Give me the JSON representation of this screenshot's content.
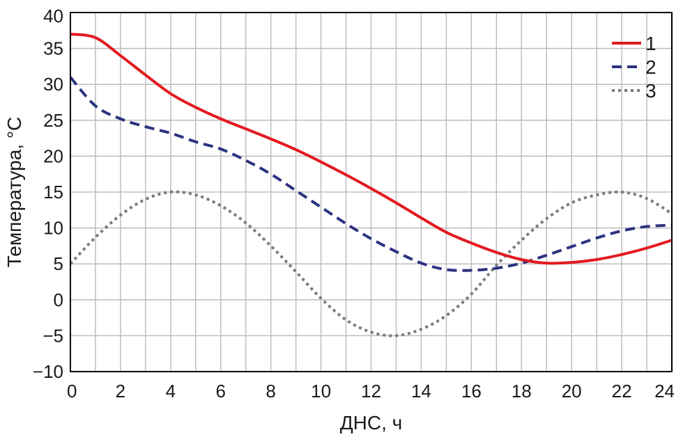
{
  "chart_data": {
    "type": "line",
    "xlabel": "ДНС, ч",
    "ylabel": "Температура, °C",
    "xlim": [
      0,
      24
    ],
    "ylim": [
      -10,
      40
    ],
    "x_ticks": [
      "0",
      "2",
      "4",
      "6",
      "8",
      "10",
      "12",
      "14",
      "16",
      "18",
      "20",
      "22",
      "24"
    ],
    "y_ticks": [
      "−10",
      "−5",
      "0",
      "5",
      "10",
      "15",
      "20",
      "25",
      "30",
      "35",
      "40"
    ],
    "grid": true,
    "legend_position": "top-right",
    "series": [
      {
        "name": "1",
        "color": "#e3191f",
        "dash": "solid",
        "x": [
          0,
          1,
          2,
          3,
          4,
          5,
          6,
          7,
          8,
          9,
          10,
          11,
          12,
          13,
          14,
          15,
          16,
          17,
          18,
          19,
          20,
          21,
          22,
          23,
          24
        ],
        "y": [
          37,
          36.5,
          34,
          31.3,
          28.7,
          26.8,
          25.2,
          23.8,
          22.4,
          20.9,
          19.2,
          17.4,
          15.5,
          13.5,
          11.4,
          9.4,
          7.9,
          6.6,
          5.6,
          5.1,
          5.2,
          5.6,
          6.3,
          7.2,
          8.3
        ]
      },
      {
        "name": "2",
        "color": "#2b3380",
        "dash": "dashed",
        "x": [
          0,
          1,
          2,
          3,
          4,
          5,
          6,
          7,
          8,
          9,
          10,
          11,
          12,
          13,
          14,
          15,
          16,
          17,
          18,
          19,
          20,
          21,
          22,
          23,
          24
        ],
        "y": [
          31,
          27,
          25.2,
          24.1,
          23.2,
          22,
          21,
          19.4,
          17.5,
          15.2,
          12.9,
          10.6,
          8.5,
          6.7,
          5.1,
          4.2,
          4.1,
          4.4,
          5.1,
          6.2,
          7.4,
          8.6,
          9.6,
          10.2,
          10.4
        ]
      },
      {
        "name": "3",
        "color": "#7a7a7a",
        "dash": "dotted",
        "x": [
          0,
          1,
          2,
          3,
          4,
          5,
          6,
          7,
          8,
          9,
          10,
          11,
          12,
          13,
          14,
          15,
          16,
          17,
          18,
          19,
          20,
          21,
          22,
          23,
          24
        ],
        "y": [
          5,
          8.7,
          11.8,
          14,
          15,
          14.6,
          13.1,
          10.7,
          7.5,
          3.9,
          0.2,
          -2.8,
          -4.5,
          -5,
          -4.1,
          -2.2,
          0.8,
          4.8,
          8.3,
          11.3,
          13.5,
          14.6,
          15,
          14.1,
          12
        ]
      }
    ]
  }
}
